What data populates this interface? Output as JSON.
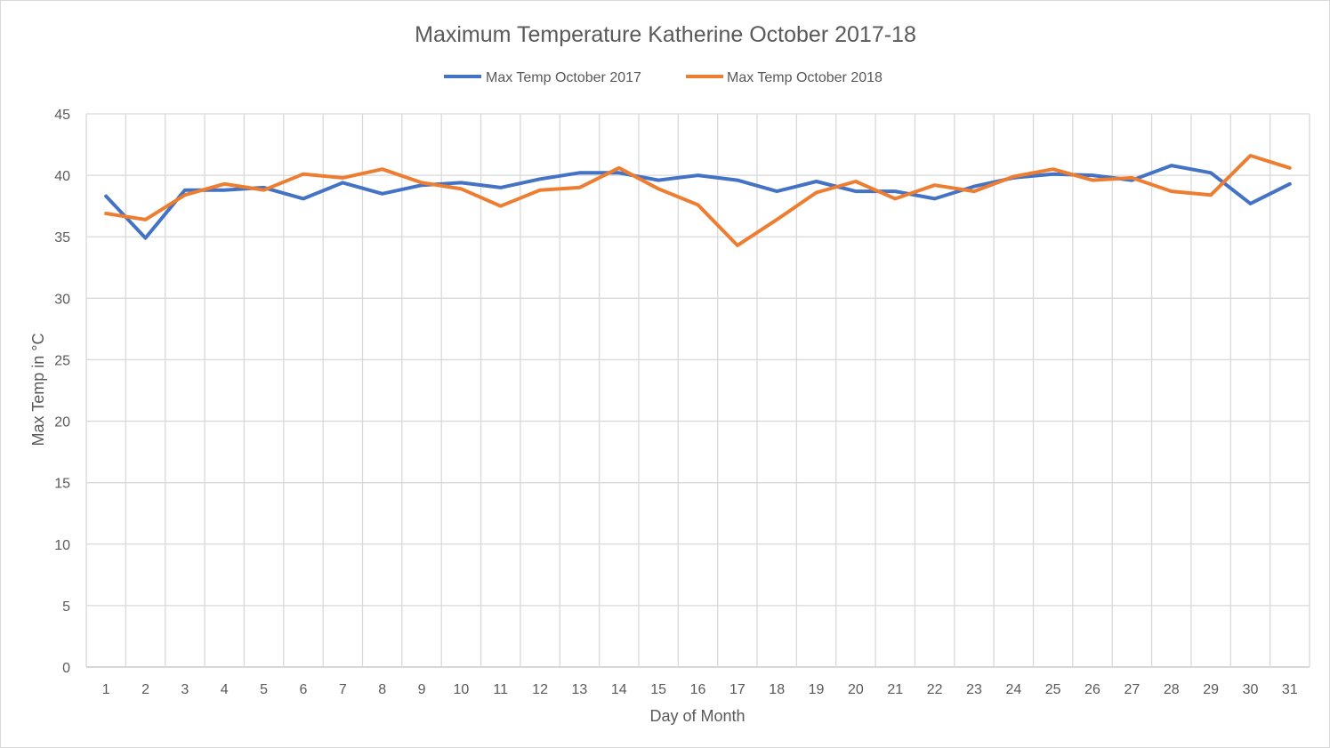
{
  "chart_data": {
    "type": "line",
    "title": "Maximum Temperature  Katherine October 2017-18",
    "xlabel": "Day of Month",
    "ylabel": "Max Temp in °C",
    "ylim": [
      0,
      45
    ],
    "yticks": [
      "0",
      "5",
      "10",
      "15",
      "20",
      "25",
      "30",
      "35",
      "40",
      "45"
    ],
    "grid": true,
    "legend_position": "top",
    "categories": [
      "1",
      "2",
      "3",
      "4",
      "5",
      "6",
      "7",
      "8",
      "9",
      "10",
      "11",
      "12",
      "13",
      "14",
      "15",
      "16",
      "17",
      "18",
      "19",
      "20",
      "21",
      "22",
      "23",
      "24",
      "25",
      "26",
      "27",
      "28",
      "29",
      "30",
      "31"
    ],
    "series": [
      {
        "name": "Max Temp October 2017",
        "color": "#4472c4",
        "values": [
          38.3,
          34.9,
          38.8,
          38.8,
          39.0,
          38.1,
          39.4,
          38.5,
          39.2,
          39.4,
          39.0,
          39.7,
          40.2,
          40.2,
          39.6,
          40.0,
          39.6,
          38.7,
          39.5,
          38.7,
          38.7,
          38.1,
          39.1,
          39.8,
          40.1,
          40.0,
          39.6,
          40.8,
          40.2,
          37.7,
          39.3
        ]
      },
      {
        "name": "Max Temp October 2018",
        "color": "#ed7d31",
        "values": [
          36.9,
          36.4,
          38.4,
          39.3,
          38.8,
          40.1,
          39.8,
          40.5,
          39.4,
          38.9,
          37.5,
          38.8,
          39.0,
          40.6,
          38.9,
          37.6,
          34.3,
          36.4,
          38.6,
          39.5,
          38.1,
          39.2,
          38.7,
          39.9,
          40.5,
          39.6,
          39.8,
          38.7,
          38.4,
          41.6,
          40.6
        ]
      }
    ]
  }
}
